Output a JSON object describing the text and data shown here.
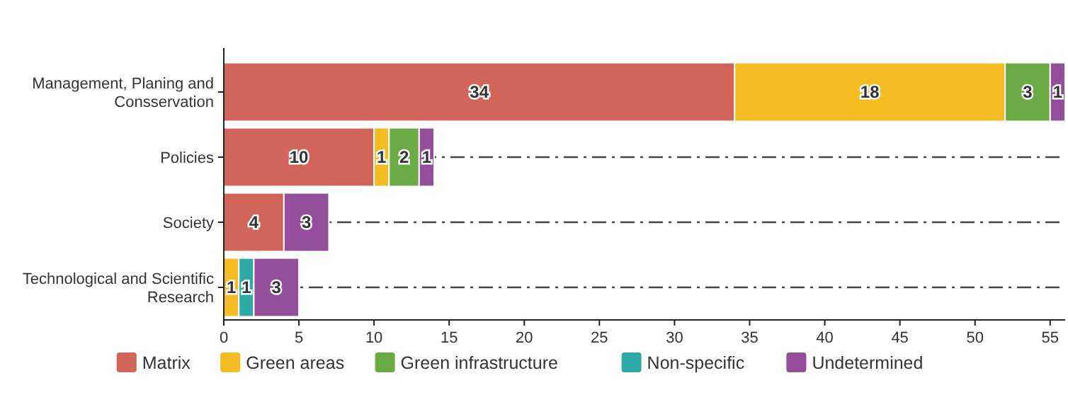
{
  "chart_data": {
    "type": "bar",
    "orientation": "horizontal",
    "stacked": true,
    "categories": [
      "Management, Planing and Consservation",
      "Policies",
      "Society",
      "Technological and Scientific Research"
    ],
    "series": [
      {
        "name": "Matrix",
        "color": "#d1655a",
        "values": [
          34,
          10,
          4,
          null
        ]
      },
      {
        "name": "Green areas",
        "color": "#f5bb22",
        "values": [
          18,
          1,
          null,
          1
        ]
      },
      {
        "name": "Green infrastructure",
        "color": "#6aab45",
        "values": [
          3,
          2,
          null,
          null
        ]
      },
      {
        "name": "Non-specific",
        "color": "#2eaaa6",
        "values": [
          null,
          null,
          null,
          1
        ]
      },
      {
        "name": "Undetermined",
        "color": "#954e9c",
        "values": [
          1,
          1,
          3,
          3
        ]
      }
    ],
    "xlim": [
      0,
      56
    ],
    "xticks": [
      0,
      5,
      10,
      15,
      20,
      25,
      30,
      35,
      40,
      45,
      50,
      55
    ],
    "data_labels": true,
    "grid": "y",
    "legend": "bottom"
  }
}
